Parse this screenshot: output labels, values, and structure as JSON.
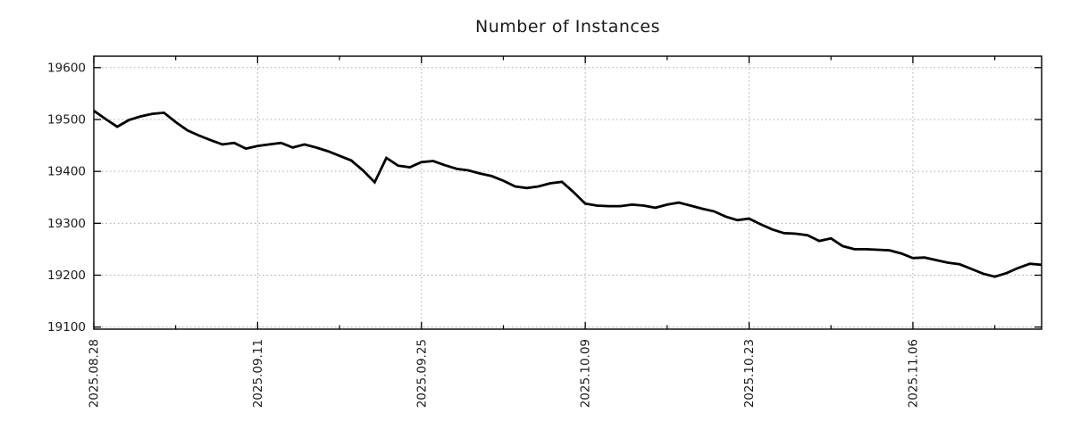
{
  "title": "Number of Instances",
  "colors": {
    "background": "#ffffff",
    "line": "#000000",
    "axis": "#000000",
    "grid": "#a8a8a8",
    "text": "#1a1a1a"
  },
  "chart_data": {
    "type": "line",
    "title": "Number of Instances",
    "xlabel": "",
    "ylabel": "",
    "legend": "none",
    "grid": "dotted",
    "line_color": "#000000",
    "line_width": 2.8,
    "ylim": [
      19096,
      19622
    ],
    "y_ticks": [
      19100,
      19200,
      19300,
      19400,
      19500,
      19600
    ],
    "x_major_ticks": [
      "2025.08.28",
      "2025.09.11",
      "2025.09.25",
      "2025.10.09",
      "2025.10.23",
      "2025.11.06"
    ],
    "x": [
      "2025.08.28",
      "2025.08.29",
      "2025.08.30",
      "2025.08.31",
      "2025.09.01",
      "2025.09.02",
      "2025.09.03",
      "2025.09.04",
      "2025.09.05",
      "2025.09.06",
      "2025.09.07",
      "2025.09.08",
      "2025.09.09",
      "2025.09.10",
      "2025.09.11",
      "2025.09.12",
      "2025.09.13",
      "2025.09.14",
      "2025.09.15",
      "2025.09.16",
      "2025.09.17",
      "2025.09.18",
      "2025.09.19",
      "2025.09.20",
      "2025.09.21",
      "2025.09.22",
      "2025.09.23",
      "2025.09.24",
      "2025.09.25",
      "2025.09.26",
      "2025.09.27",
      "2025.09.28",
      "2025.09.29",
      "2025.09.30",
      "2025.10.01",
      "2025.10.02",
      "2025.10.03",
      "2025.10.04",
      "2025.10.05",
      "2025.10.06",
      "2025.10.07",
      "2025.10.08",
      "2025.10.09",
      "2025.10.10",
      "2025.10.11",
      "2025.10.12",
      "2025.10.13",
      "2025.10.14",
      "2025.10.15",
      "2025.10.16",
      "2025.10.17",
      "2025.10.18",
      "2025.10.19",
      "2025.10.20",
      "2025.10.21",
      "2025.10.22",
      "2025.10.23",
      "2025.10.24",
      "2025.10.25",
      "2025.10.26",
      "2025.10.27",
      "2025.10.28",
      "2025.10.29",
      "2025.10.30",
      "2025.10.31",
      "2025.11.01",
      "2025.11.02",
      "2025.11.03",
      "2025.11.04",
      "2025.11.05",
      "2025.11.06",
      "2025.11.07",
      "2025.11.08",
      "2025.11.09",
      "2025.11.10",
      "2025.11.11",
      "2025.11.12",
      "2025.11.13",
      "2025.11.14",
      "2025.11.15",
      "2025.11.16",
      "2025.11.17"
    ],
    "values": [
      19517,
      19501,
      19486,
      19499,
      19506,
      19511,
      19513,
      19495,
      19479,
      19469,
      19460,
      19452,
      19455,
      19444,
      19449,
      19452,
      19455,
      19446,
      19452,
      19446,
      19439,
      19430,
      19421,
      19402,
      19379,
      19426,
      19411,
      19408,
      19418,
      19420,
      19412,
      19405,
      19402,
      19396,
      19391,
      19382,
      19371,
      19368,
      19371,
      19377,
      19380,
      19360,
      19338,
      19334,
      19333,
      19333,
      19336,
      19334,
      19330,
      19336,
      19340,
      19334,
      19328,
      19323,
      19313,
      19306,
      19309,
      19298,
      19288,
      19281,
      19280,
      19277,
      19266,
      19271,
      19256,
      19250,
      19250,
      19249,
      19248,
      19242,
      19233,
      19234,
      19229,
      19224,
      19221,
      19212,
      19203,
      19197,
      19204,
      19214,
      19222,
      19220
    ]
  }
}
